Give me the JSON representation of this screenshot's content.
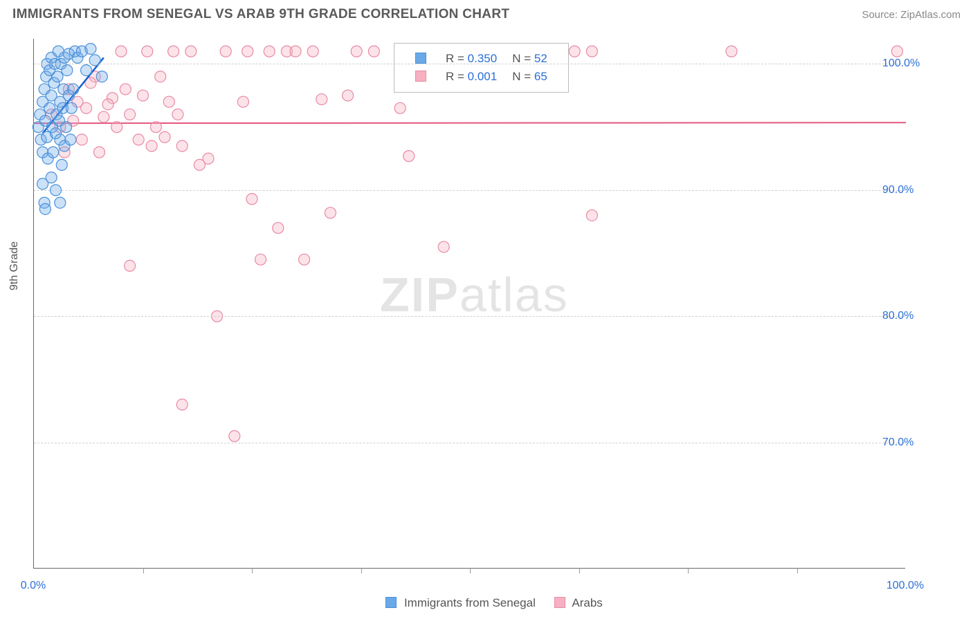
{
  "header": {
    "title": "IMMIGRANTS FROM SENEGAL VS ARAB 9TH GRADE CORRELATION CHART",
    "source": "Source: ZipAtlas.com"
  },
  "axes": {
    "y_title": "9th Grade",
    "xlim": [
      0,
      100
    ],
    "ylim": [
      60,
      102
    ],
    "x_ticks": [
      0,
      100
    ],
    "x_tick_labels": [
      "0.0%",
      "100.0%"
    ],
    "x_minor_ticks": [
      12.5,
      25,
      37.5,
      50,
      62.5,
      75,
      87.5
    ],
    "y_ticks": [
      70,
      80,
      90,
      100
    ],
    "y_tick_labels": [
      "70.0%",
      "80.0%",
      "90.0%",
      "100.0%"
    ],
    "grid_color": "#cfcfcf",
    "axis_color": "#666666",
    "tick_label_color": "#2b6fd6",
    "label_fontsize": 16
  },
  "chart": {
    "type": "scatter",
    "background_color": "#ffffff",
    "marker_radius": 8,
    "marker_fill_opacity": 0.35,
    "series": [
      {
        "name": "Immigrants from Senegal",
        "color": "#6aa9e8",
        "stroke": "#4a90d9",
        "R": "0.350",
        "N": "52",
        "trend": {
          "x1": 1.0,
          "y1": 94.5,
          "x2": 8.0,
          "y2": 100.5,
          "color": "#1560d0",
          "width": 2.5
        },
        "points": [
          [
            0.5,
            95.0
          ],
          [
            0.7,
            96.0
          ],
          [
            0.8,
            94.0
          ],
          [
            1.0,
            97.0
          ],
          [
            1.0,
            93.0
          ],
          [
            1.2,
            98.0
          ],
          [
            1.3,
            95.5
          ],
          [
            1.4,
            99.0
          ],
          [
            1.5,
            94.2
          ],
          [
            1.5,
            100.0
          ],
          [
            1.6,
            92.5
          ],
          [
            1.8,
            96.5
          ],
          [
            1.8,
            99.5
          ],
          [
            2.0,
            97.5
          ],
          [
            2.0,
            100.5
          ],
          [
            2.1,
            95.0
          ],
          [
            2.2,
            93.0
          ],
          [
            2.3,
            98.5
          ],
          [
            2.4,
            100.0
          ],
          [
            2.5,
            94.5
          ],
          [
            2.6,
            96.0
          ],
          [
            2.7,
            99.0
          ],
          [
            2.8,
            101.0
          ],
          [
            2.9,
            95.5
          ],
          [
            3.0,
            97.0
          ],
          [
            3.0,
            94.0
          ],
          [
            3.1,
            100.0
          ],
          [
            3.2,
            92.0
          ],
          [
            3.3,
            96.5
          ],
          [
            3.4,
            98.0
          ],
          [
            3.5,
            100.5
          ],
          [
            3.5,
            93.5
          ],
          [
            3.7,
            95.0
          ],
          [
            3.8,
            99.5
          ],
          [
            4.0,
            100.8
          ],
          [
            4.0,
            97.5
          ],
          [
            4.2,
            94.0
          ],
          [
            4.3,
            96.5
          ],
          [
            4.5,
            98.0
          ],
          [
            4.7,
            101.0
          ],
          [
            1.0,
            90.5
          ],
          [
            1.2,
            89.0
          ],
          [
            1.3,
            88.5
          ],
          [
            5.0,
            100.5
          ],
          [
            5.5,
            101.0
          ],
          [
            6.0,
            99.5
          ],
          [
            6.5,
            101.2
          ],
          [
            7.0,
            100.3
          ],
          [
            7.8,
            99.0
          ],
          [
            2.0,
            91.0
          ],
          [
            2.5,
            90.0
          ],
          [
            3.0,
            89.0
          ]
        ]
      },
      {
        "name": "Arabs",
        "color": "#f7b0c1",
        "stroke": "#e88aa3",
        "R": "0.001",
        "N": "65",
        "trend": {
          "x1": 0.0,
          "y1": 95.3,
          "x2": 100.0,
          "y2": 95.35,
          "color": "#e4567d",
          "width": 2
        },
        "points": [
          [
            2.0,
            96.0
          ],
          [
            3.0,
            95.0
          ],
          [
            4.0,
            98.0
          ],
          [
            5.0,
            97.0
          ],
          [
            6.0,
            96.5
          ],
          [
            7.0,
            99.0
          ],
          [
            8.0,
            95.8
          ],
          [
            9.0,
            97.3
          ],
          [
            10.0,
            101.0
          ],
          [
            11.0,
            96.0
          ],
          [
            12.0,
            94.0
          ],
          [
            11.0,
            84.0
          ],
          [
            13.0,
            101.0
          ],
          [
            14.0,
            95.0
          ],
          [
            15.0,
            94.2
          ],
          [
            16.0,
            101.0
          ],
          [
            17.0,
            93.5
          ],
          [
            18.0,
            101.0
          ],
          [
            19.0,
            92.0
          ],
          [
            20.0,
            92.5
          ],
          [
            21.0,
            80.0
          ],
          [
            22.0,
            101.0
          ],
          [
            23.0,
            70.5
          ],
          [
            17.0,
            73.0
          ],
          [
            24.0,
            97.0
          ],
          [
            25.0,
            89.3
          ],
          [
            26.0,
            84.5
          ],
          [
            27.0,
            101.0
          ],
          [
            28.0,
            87.0
          ],
          [
            29.0,
            101.0
          ],
          [
            30.0,
            101.0
          ],
          [
            31.0,
            84.5
          ],
          [
            33.0,
            97.2
          ],
          [
            34.0,
            88.2
          ],
          [
            36.0,
            97.5
          ],
          [
            39.0,
            101.0
          ],
          [
            42.0,
            96.5
          ],
          [
            43.0,
            92.7
          ],
          [
            44.0,
            101.0
          ],
          [
            47.0,
            85.5
          ],
          [
            50.0,
            101.0
          ],
          [
            55.0,
            101.0
          ],
          [
            62.0,
            101.0
          ],
          [
            64.0,
            88.0
          ],
          [
            64.0,
            101.0
          ],
          [
            80.0,
            101.0
          ],
          [
            99.0,
            101.0
          ],
          [
            57.0,
            101.0
          ],
          [
            12.5,
            97.5
          ],
          [
            14.5,
            99.0
          ],
          [
            16.5,
            96.0
          ],
          [
            5.5,
            94.0
          ],
          [
            7.5,
            93.0
          ],
          [
            9.5,
            95.0
          ],
          [
            37.0,
            101.0
          ],
          [
            46.0,
            101.0
          ],
          [
            3.5,
            93.0
          ],
          [
            6.5,
            98.5
          ],
          [
            4.5,
            95.5
          ],
          [
            8.5,
            96.8
          ],
          [
            10.5,
            98.0
          ],
          [
            13.5,
            93.5
          ],
          [
            15.5,
            97.0
          ],
          [
            24.5,
            101.0
          ],
          [
            32.0,
            101.0
          ]
        ]
      }
    ]
  },
  "legend_box": {
    "r_label": "R =",
    "n_label": "N ="
  },
  "bottom_legend": {
    "series1": "Immigrants from Senegal",
    "series2": "Arabs"
  },
  "watermark": {
    "part1": "ZIP",
    "part2": "atlas"
  }
}
